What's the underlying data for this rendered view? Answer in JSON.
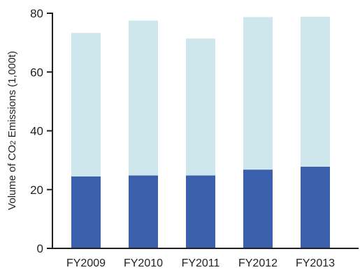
{
  "chart_data": {
    "type": "bar",
    "stacked": true,
    "categories": [
      "FY2009",
      "FY2010",
      "FY2011",
      "FY2012",
      "FY2013"
    ],
    "series": [
      {
        "values": [
          24.5,
          24.8,
          24.8,
          26.8,
          27.8
        ],
        "color": "#3a5fab"
      },
      {
        "values": [
          48.8,
          52.7,
          46.6,
          51.9,
          51.0
        ],
        "color": "#cde7ed"
      }
    ],
    "ylabel": "Volume of CO2 Emissions (1,000t)",
    "ylim": [
      0,
      80
    ],
    "yticks": [
      0,
      20,
      40,
      60,
      80
    ],
    "grid": false
  }
}
